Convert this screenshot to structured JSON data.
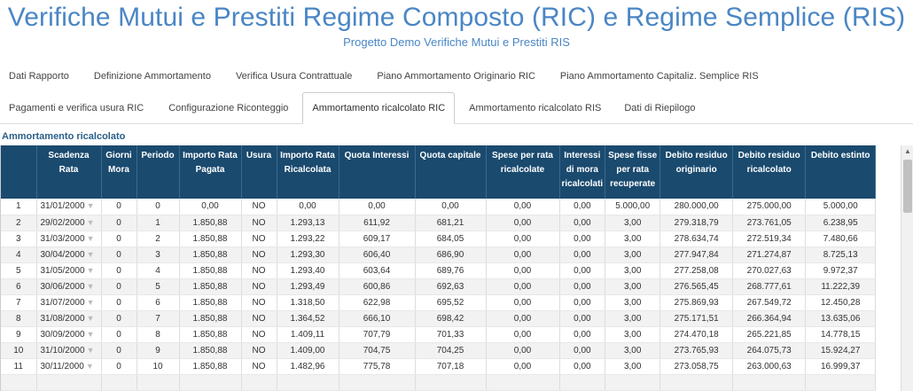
{
  "header": {
    "title": "Verifiche Mutui e Prestiti Regime Composto (RIC) e Regime Semplice (RIS)",
    "subtitle": "Progetto Demo Verifiche Mutui e Prestiti RIS"
  },
  "tabs_row1": [
    "Dati Rapporto",
    "Definizione Ammortamento",
    "Verifica Usura Contrattuale",
    "Piano Ammortamento Originario RIC",
    "Piano Ammortamento Capitaliz. Semplice RIS"
  ],
  "tabs_row2": [
    "Pagamenti e verifica usura RIC",
    "Configurazione Riconteggio",
    "Ammortamento ricalcolato RIC",
    "Ammortamento ricalcolato RIS",
    "Dati di Riepilogo"
  ],
  "active_tab": "Ammortamento ricalcolato RIC",
  "section_label": "Ammortamento ricalcolato",
  "icons": {
    "date_dropdown": "chevron-down-icon",
    "scroll_up": "arrow-up-icon"
  },
  "colors": {
    "accent": "#4a86c5",
    "header_bg": "#1a4a6e"
  },
  "table": {
    "columns": [
      "",
      "Scadenza Rata",
      "Giorni Mora",
      "Periodo",
      "Importo Rata Pagata",
      "Usura",
      "Importo Rata Ricalcolata",
      "Quota Interessi",
      "Quota capitale",
      "Spese per rata ricalcolate",
      "Interessi di mora ricalcolati",
      "Spese fisse per rata recuperate",
      "Debito residuo originario",
      "Debito residuo ricalcolato",
      "Debito estinto"
    ],
    "rows": [
      [
        "1",
        "31/01/2000",
        "0",
        "0",
        "0,00",
        "NO",
        "0,00",
        "0,00",
        "0,00",
        "0,00",
        "0,00",
        "5.000,00",
        "280.000,00",
        "275.000,00",
        "5.000,00"
      ],
      [
        "2",
        "29/02/2000",
        "0",
        "1",
        "1.850,88",
        "NO",
        "1.293,13",
        "611,92",
        "681,21",
        "0,00",
        "0,00",
        "3,00",
        "279.318,79",
        "273.761,05",
        "6.238,95"
      ],
      [
        "3",
        "31/03/2000",
        "0",
        "2",
        "1.850,88",
        "NO",
        "1.293,22",
        "609,17",
        "684,05",
        "0,00",
        "0,00",
        "3,00",
        "278.634,74",
        "272.519,34",
        "7.480,66"
      ],
      [
        "4",
        "30/04/2000",
        "0",
        "3",
        "1.850,88",
        "NO",
        "1.293,30",
        "606,40",
        "686,90",
        "0,00",
        "0,00",
        "3,00",
        "277.947,84",
        "271.274,87",
        "8.725,13"
      ],
      [
        "5",
        "31/05/2000",
        "0",
        "4",
        "1.850,88",
        "NO",
        "1.293,40",
        "603,64",
        "689,76",
        "0,00",
        "0,00",
        "3,00",
        "277.258,08",
        "270.027,63",
        "9.972,37"
      ],
      [
        "6",
        "30/06/2000",
        "0",
        "5",
        "1.850,88",
        "NO",
        "1.293,49",
        "600,86",
        "692,63",
        "0,00",
        "0,00",
        "3,00",
        "276.565,45",
        "268.777,61",
        "11.222,39"
      ],
      [
        "7",
        "31/07/2000",
        "0",
        "6",
        "1.850,88",
        "NO",
        "1.318,50",
        "622,98",
        "695,52",
        "0,00",
        "0,00",
        "3,00",
        "275.869,93",
        "267.549,72",
        "12.450,28"
      ],
      [
        "8",
        "31/08/2000",
        "0",
        "7",
        "1.850,88",
        "NO",
        "1.364,52",
        "666,10",
        "698,42",
        "0,00",
        "0,00",
        "3,00",
        "275.171,51",
        "266.364,94",
        "13.635,06"
      ],
      [
        "9",
        "30/09/2000",
        "0",
        "8",
        "1.850,88",
        "NO",
        "1.409,11",
        "707,79",
        "701,33",
        "0,00",
        "0,00",
        "3,00",
        "274.470,18",
        "265.221,85",
        "14.778,15"
      ],
      [
        "10",
        "31/10/2000",
        "0",
        "9",
        "1.850,88",
        "NO",
        "1.409,00",
        "704,75",
        "704,25",
        "0,00",
        "0,00",
        "3,00",
        "273.765,93",
        "264.075,73",
        "15.924,27"
      ],
      [
        "11",
        "30/11/2000",
        "0",
        "10",
        "1.850,88",
        "NO",
        "1.482,96",
        "775,78",
        "707,18",
        "0,00",
        "0,00",
        "3,00",
        "273.058,75",
        "263.000,63",
        "16.999,37"
      ],
      [
        "",
        "",
        "",
        "",
        "",
        "",
        "",
        "",
        "",
        "",
        "",
        "",
        "",
        "",
        ""
      ]
    ]
  }
}
